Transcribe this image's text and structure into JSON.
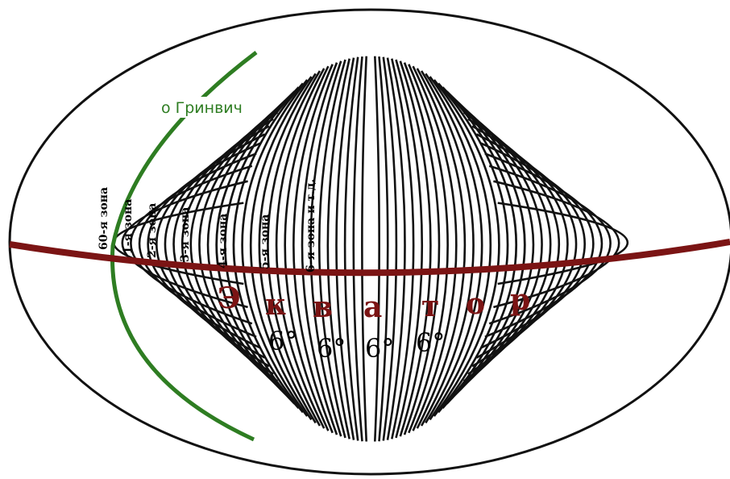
{
  "colors": {
    "meridian": "#111111",
    "equator": "#7b1414",
    "greenwich": "#2e7d22",
    "equator_text": "#7b1414"
  },
  "greenwich_label": "о Гринвич",
  "zone_labels": [
    "60-я зона",
    "1-я зона",
    "2-я зона",
    "3-я зона",
    "4-я зона",
    "5-я зона",
    "6-я зона и т.д."
  ],
  "equator_letters": [
    "Э",
    "к",
    "в",
    "а",
    "т",
    "о",
    "р"
  ],
  "degree_labels": [
    "6°",
    "6°",
    "6°",
    "6°"
  ]
}
